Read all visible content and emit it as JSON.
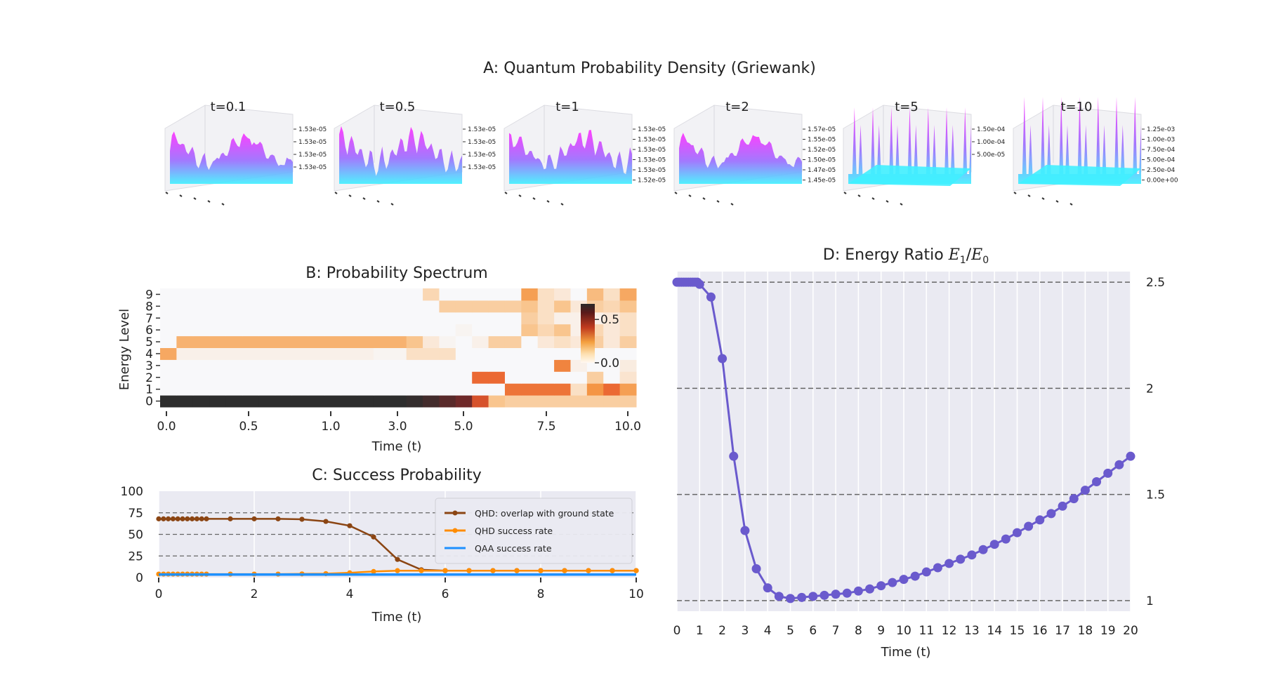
{
  "figure_title": "A: Quantum Probability Density (Griewank)",
  "chart_data": [
    {
      "id": "A",
      "type": "surface",
      "title": "A: Quantum Probability Density (Griewank)",
      "panels": [
        {
          "label": "t=0.1",
          "zticks": [
            "1.53e-05",
            "1.53e-05",
            "1.53e-05",
            "1.53e-05"
          ]
        },
        {
          "label": "t=0.5",
          "zticks": [
            "1.53e-05",
            "1.53e-05",
            "1.53e-05",
            "1.53e-05"
          ]
        },
        {
          "label": "t=1",
          "zticks": [
            "1.53e-05",
            "1.53e-05",
            "1.53e-05",
            "1.53e-05",
            "1.53e-05",
            "1.52e-05"
          ]
        },
        {
          "label": "t=2",
          "zticks": [
            "1.57e-05",
            "1.55e-05",
            "1.52e-05",
            "1.50e-05",
            "1.47e-05",
            "1.45e-05"
          ]
        },
        {
          "label": "t=5",
          "zticks": [
            "1.50e-04",
            "1.00e-04",
            "5.00e-05"
          ]
        },
        {
          "label": "t=10",
          "zticks": [
            "1.25e-03",
            "1.00e-03",
            "7.50e-04",
            "5.00e-04",
            "2.50e-04",
            "0.00e+00"
          ]
        }
      ]
    },
    {
      "id": "B",
      "type": "heatmap",
      "title": "B: Probability Spectrum",
      "xlabel": "Time (t)",
      "ylabel": "Energy Level",
      "xticks": [
        "0.0",
        "0.5",
        "1.0",
        "3.0",
        "5.0",
        "7.5",
        "10.0"
      ],
      "yticks": [
        "0",
        "1",
        "2",
        "3",
        "4",
        "5",
        "6",
        "7",
        "8",
        "9"
      ],
      "colorbar_ticks": [
        "0.5",
        "0.0"
      ],
      "colorbar_range": [
        0,
        0.68
      ],
      "columns": 29,
      "values": {
        "0": [
          0.68,
          0.68,
          0.68,
          0.68,
          0.68,
          0.68,
          0.68,
          0.68,
          0.68,
          0.68,
          0.68,
          0.68,
          0.68,
          0.68,
          0.68,
          0.66,
          0.62,
          0.56,
          0.5,
          0.35,
          0.12,
          0.1,
          0.1,
          0.1,
          0.1,
          0.1,
          0.1,
          0.1,
          0.1
        ],
        "1": [
          0,
          0,
          0,
          0,
          0,
          0,
          0,
          0,
          0,
          0,
          0,
          0,
          0,
          0,
          0,
          0,
          0,
          0,
          0,
          0,
          0,
          0.28,
          0.28,
          0.28,
          0.28,
          0.06,
          0.22,
          0.3,
          0.2
        ],
        "2": [
          0,
          0,
          0,
          0,
          0,
          0,
          0,
          0,
          0,
          0,
          0,
          0,
          0,
          0,
          0,
          0,
          0,
          0,
          0,
          0.3,
          0.3,
          0,
          0,
          0,
          0,
          0,
          0.1,
          0,
          0.05
        ],
        "3": [
          0,
          0,
          0,
          0,
          0,
          0,
          0,
          0,
          0,
          0,
          0,
          0,
          0,
          0,
          0,
          0,
          0,
          0,
          0,
          0,
          0,
          0,
          0,
          0,
          0.25,
          0.02,
          0,
          0,
          0.03
        ],
        "4": [
          0.18,
          0.02,
          0.02,
          0.02,
          0.02,
          0.02,
          0.02,
          0.02,
          0.02,
          0.02,
          0.02,
          0.02,
          0.02,
          0.01,
          0.01,
          0.06,
          0.06,
          0.06,
          0,
          0,
          0,
          0,
          0,
          0,
          0,
          0,
          0,
          0,
          0
        ],
        "5": [
          0,
          0.16,
          0.16,
          0.16,
          0.16,
          0.16,
          0.16,
          0.16,
          0.16,
          0.16,
          0.16,
          0.16,
          0.16,
          0.16,
          0.16,
          0.12,
          0.04,
          0.01,
          0,
          0.02,
          0.1,
          0.1,
          0,
          0.04,
          0.06,
          0.04,
          0.1,
          0.04,
          0.1
        ],
        "6": [
          0,
          0,
          0,
          0,
          0,
          0,
          0,
          0,
          0,
          0,
          0,
          0,
          0,
          0,
          0,
          0,
          0,
          0,
          0.01,
          0,
          0,
          0,
          0.12,
          0.08,
          0.12,
          0.02,
          0.08,
          0.04,
          0.06
        ],
        "7": [
          0,
          0,
          0,
          0,
          0,
          0,
          0,
          0,
          0,
          0,
          0,
          0,
          0,
          0,
          0,
          0,
          0,
          0,
          0,
          0,
          0,
          0,
          0.1,
          0.06,
          0.02,
          0.02,
          0.02,
          0.04,
          0.06
        ],
        "8": [
          0,
          0,
          0,
          0,
          0,
          0,
          0,
          0,
          0,
          0,
          0,
          0,
          0,
          0,
          0,
          0,
          0,
          0.1,
          0.1,
          0.1,
          0.1,
          0.1,
          0.12,
          0.06,
          0.12,
          0.04,
          0.1,
          0.08,
          0.12
        ],
        "9": [
          0,
          0,
          0,
          0,
          0,
          0,
          0,
          0,
          0,
          0,
          0,
          0,
          0,
          0,
          0,
          0,
          0.08,
          0,
          0,
          0,
          0,
          0,
          0.2,
          0.06,
          0.04,
          0,
          0.14,
          0.06,
          0.18
        ]
      }
    },
    {
      "id": "C",
      "type": "line",
      "title": "C: Success Probability",
      "xlabel": "Time (t)",
      "xlim": [
        0,
        10
      ],
      "ylim": [
        0,
        100
      ],
      "xticks": [
        "0",
        "2",
        "4",
        "6",
        "8",
        "10"
      ],
      "yticks": [
        "0",
        "25",
        "50",
        "75",
        "100"
      ],
      "series": [
        {
          "name": "QHD: overlap with ground state",
          "color": "#8b4513",
          "x": [
            0,
            0.1,
            0.2,
            0.3,
            0.4,
            0.5,
            0.6,
            0.7,
            0.8,
            0.9,
            1,
            1.5,
            2,
            2.5,
            3,
            3.5,
            4,
            4.5,
            5,
            5.5,
            6,
            6.5,
            7,
            7.5,
            8,
            8.5,
            9,
            9.5,
            10
          ],
          "y": [
            68,
            68,
            68,
            68,
            68,
            68,
            68,
            68,
            68,
            68,
            68,
            68,
            68,
            68,
            67.5,
            65,
            60,
            47,
            21,
            9,
            8,
            8,
            8,
            8,
            8,
            8,
            8,
            8,
            8
          ]
        },
        {
          "name": "QHD success rate",
          "color": "#ff8c00",
          "x": [
            0,
            0.1,
            0.2,
            0.3,
            0.4,
            0.5,
            0.6,
            0.7,
            0.8,
            0.9,
            1,
            1.5,
            2,
            2.5,
            3,
            3.5,
            4,
            4.5,
            5,
            5.5,
            6,
            6.5,
            7,
            7.5,
            8,
            8.5,
            9,
            9.5,
            10
          ],
          "y": [
            4,
            4,
            4,
            4,
            4,
            4,
            4,
            4,
            4,
            4,
            4,
            4,
            4,
            4,
            4.2,
            4.5,
            5.5,
            7,
            8,
            8,
            8,
            8,
            8,
            8,
            8,
            8,
            8,
            8,
            8
          ]
        },
        {
          "name": "QAA success rate",
          "color": "#1e90ff",
          "x": [
            0,
            10
          ],
          "y": [
            3.5,
            3.5
          ]
        }
      ]
    },
    {
      "id": "D",
      "type": "line",
      "title": "D: Energy Ratio E1/E0",
      "xlabel": "Time (t)",
      "xlim": [
        0,
        20
      ],
      "ylim": [
        0.95,
        2.55
      ],
      "xticks": [
        "0",
        "1",
        "2",
        "3",
        "4",
        "5",
        "6",
        "7",
        "8",
        "9",
        "10",
        "11",
        "12",
        "13",
        "14",
        "15",
        "16",
        "17",
        "18",
        "19",
        "20"
      ],
      "yticks": [
        "1",
        "1.5",
        "2",
        "2.5"
      ],
      "series": [
        {
          "color": "#6a5acd",
          "x": [
            0,
            0.1,
            0.2,
            0.3,
            0.4,
            0.5,
            0.6,
            0.7,
            0.8,
            0.9,
            1,
            1.5,
            2,
            2.5,
            3,
            3.5,
            4,
            4.5,
            5,
            5.5,
            6,
            6.5,
            7,
            7.5,
            8,
            8.5,
            9,
            9.5,
            10,
            10.5,
            11,
            11.5,
            12,
            12.5,
            13,
            13.5,
            14,
            14.5,
            15,
            15.5,
            16,
            16.5,
            17,
            17.5,
            18,
            18.5,
            19,
            19.5,
            20
          ],
          "y": [
            2.5,
            2.5,
            2.5,
            2.5,
            2.5,
            2.5,
            2.5,
            2.5,
            2.5,
            2.5,
            2.49,
            2.43,
            2.14,
            1.68,
            1.33,
            1.15,
            1.06,
            1.02,
            1.01,
            1.015,
            1.02,
            1.025,
            1.03,
            1.035,
            1.045,
            1.055,
            1.07,
            1.085,
            1.1,
            1.115,
            1.135,
            1.155,
            1.175,
            1.195,
            1.215,
            1.24,
            1.265,
            1.29,
            1.32,
            1.35,
            1.38,
            1.41,
            1.445,
            1.48,
            1.52,
            1.56,
            1.6,
            1.64,
            1.68
          ]
        }
      ]
    }
  ]
}
